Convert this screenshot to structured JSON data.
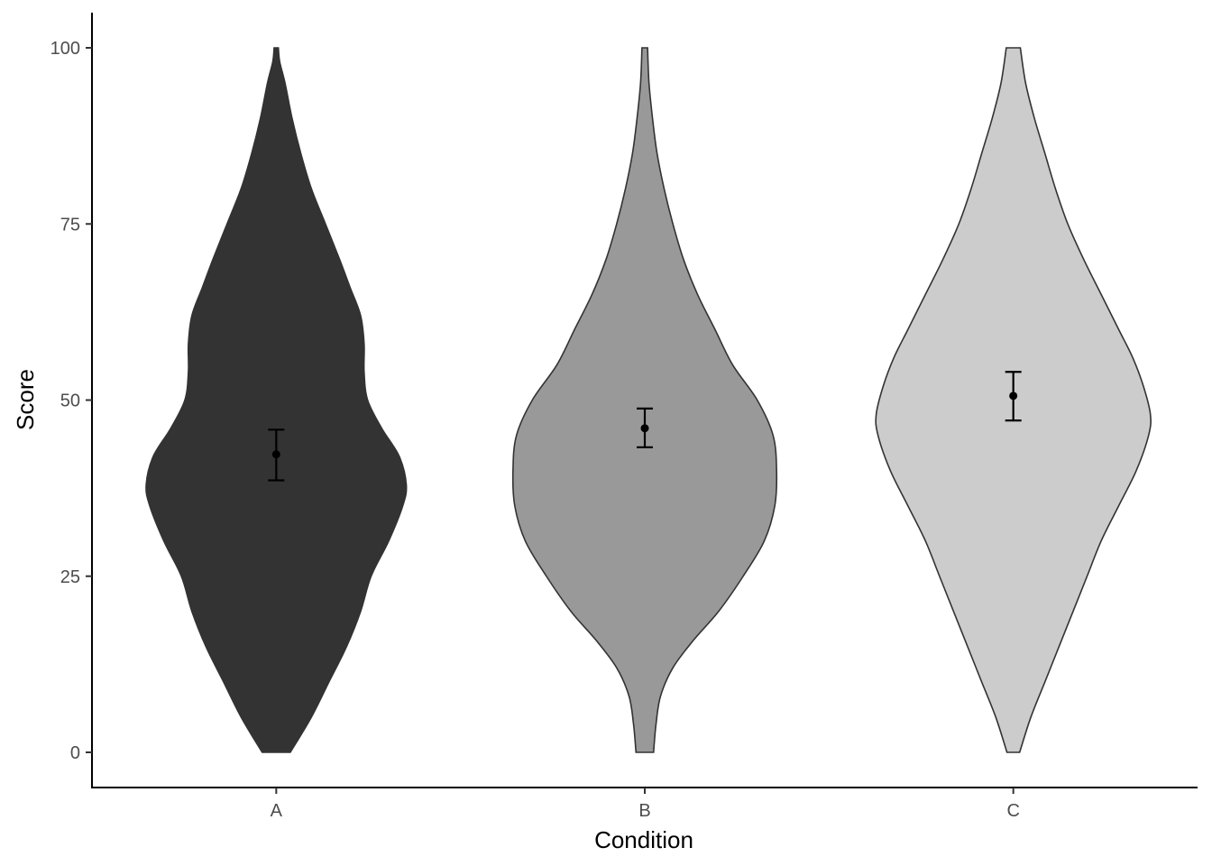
{
  "chart_data": {
    "type": "violin",
    "xlabel": "Condition",
    "ylabel": "Score",
    "ylim": [
      -5,
      105
    ],
    "y_ticks": [
      0,
      25,
      50,
      75,
      100
    ],
    "y_tick_labels": [
      "0",
      "25",
      "50",
      "75",
      "100"
    ],
    "categories": [
      "A",
      "B",
      "C"
    ],
    "grid": false,
    "legend": "none",
    "series": [
      {
        "category": "A",
        "fill": "#333333",
        "mean": 42.3,
        "ci": [
          38.6,
          45.8
        ],
        "density": [
          [
            0,
            4
          ],
          [
            5,
            10
          ],
          [
            10,
            15
          ],
          [
            15,
            20
          ],
          [
            20,
            24
          ],
          [
            25,
            27
          ],
          [
            30,
            32
          ],
          [
            35,
            36
          ],
          [
            38,
            37
          ],
          [
            42,
            35
          ],
          [
            46,
            30
          ],
          [
            50,
            26
          ],
          [
            54,
            25
          ],
          [
            58,
            25
          ],
          [
            62,
            24
          ],
          [
            66,
            21
          ],
          [
            70,
            18
          ],
          [
            75,
            14
          ],
          [
            80,
            10
          ],
          [
            85,
            7
          ],
          [
            90,
            4.5
          ],
          [
            95,
            2.5
          ],
          [
            98,
            1
          ],
          [
            100,
            0.6
          ]
        ]
      },
      {
        "category": "B",
        "fill": "#999999",
        "mean": 46.0,
        "ci": [
          43.3,
          48.8
        ],
        "density": [
          [
            0,
            2.5
          ],
          [
            4,
            3.2
          ],
          [
            8,
            4.5
          ],
          [
            12,
            8
          ],
          [
            16,
            14
          ],
          [
            20,
            21
          ],
          [
            25,
            28
          ],
          [
            30,
            34
          ],
          [
            35,
            37
          ],
          [
            40,
            37.5
          ],
          [
            45,
            36.5
          ],
          [
            50,
            32
          ],
          [
            55,
            25
          ],
          [
            60,
            20
          ],
          [
            65,
            15
          ],
          [
            70,
            11
          ],
          [
            75,
            8
          ],
          [
            80,
            5.5
          ],
          [
            85,
            3.5
          ],
          [
            90,
            2.2
          ],
          [
            95,
            1.2
          ],
          [
            100,
            0.8
          ]
        ]
      },
      {
        "category": "C",
        "fill": "#cccccc",
        "mean": 50.6,
        "ci": [
          47.1,
          54.0
        ],
        "density": [
          [
            0,
            1.8
          ],
          [
            5,
            5
          ],
          [
            10,
            9
          ],
          [
            15,
            13
          ],
          [
            20,
            17
          ],
          [
            25,
            21
          ],
          [
            30,
            25
          ],
          [
            35,
            30
          ],
          [
            40,
            35
          ],
          [
            45,
            38.5
          ],
          [
            48,
            39
          ],
          [
            52,
            37
          ],
          [
            56,
            34
          ],
          [
            60,
            30
          ],
          [
            65,
            25
          ],
          [
            70,
            20
          ],
          [
            75,
            15.5
          ],
          [
            80,
            12
          ],
          [
            85,
            9
          ],
          [
            90,
            6
          ],
          [
            95,
            3.5
          ],
          [
            100,
            2
          ]
        ]
      }
    ]
  }
}
